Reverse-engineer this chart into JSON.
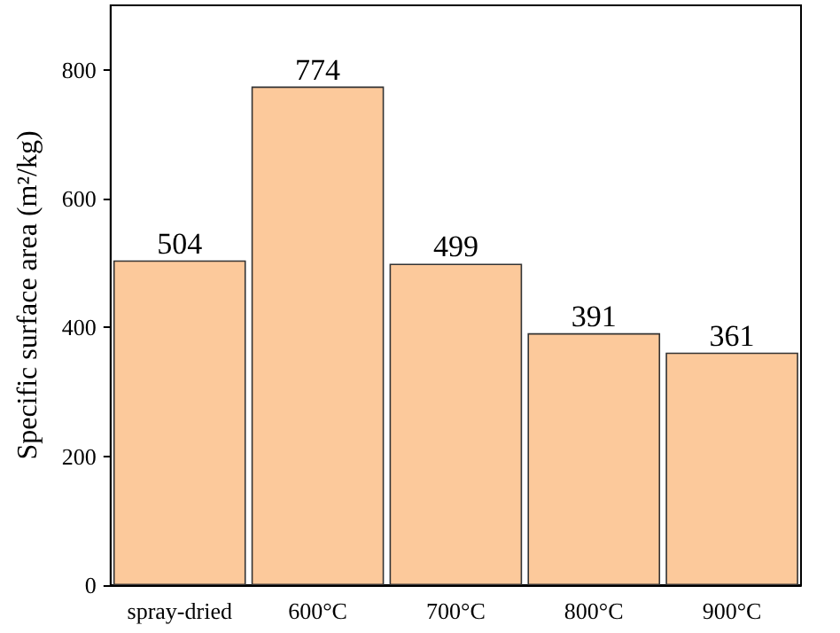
{
  "chart_data": {
    "type": "bar",
    "ylabel": "Specific surface area (m²/kg)",
    "categories": [
      "spray-dried",
      "600°C",
      "700°C",
      "800°C",
      "900°C"
    ],
    "values": [
      504,
      774,
      499,
      391,
      361
    ],
    "color": "#fcc99b",
    "ylim": [
      0,
      900
    ],
    "yticks": [
      0,
      200,
      400,
      600,
      800
    ],
    "data_labels": true
  }
}
